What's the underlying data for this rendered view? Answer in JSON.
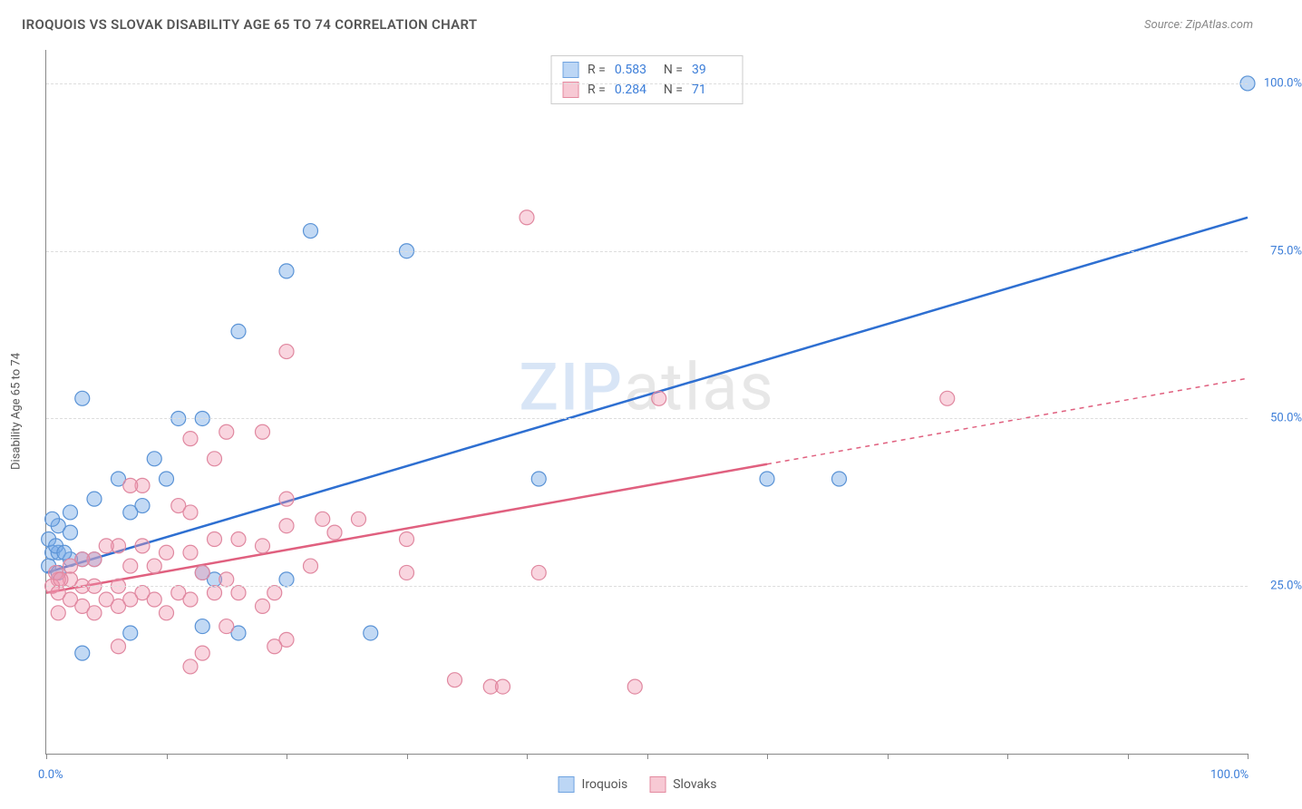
{
  "title": "IROQUOIS VS SLOVAK DISABILITY AGE 65 TO 74 CORRELATION CHART",
  "source_label": "Source:",
  "source_name": "ZipAtlas.com",
  "y_axis_title": "Disability Age 65 to 74",
  "watermark": {
    "z": "ZIP",
    "rest": "atlas"
  },
  "x_axis": {
    "min_label": "0.0%",
    "max_label": "100.0%",
    "min": 0,
    "max": 100,
    "tick_positions": [
      0,
      10,
      20,
      30,
      40,
      50,
      60,
      70,
      80,
      90,
      100
    ],
    "label_color": "#3b7dd8"
  },
  "y_axis": {
    "ticks": [
      {
        "v": 25,
        "label": "25.0%"
      },
      {
        "v": 50,
        "label": "50.0%"
      },
      {
        "v": 75,
        "label": "75.0%"
      },
      {
        "v": 100,
        "label": "100.0%"
      }
    ],
    "min": 0,
    "max": 105,
    "label_color": "#3b7dd8"
  },
  "series": [
    {
      "name": "Iroquois",
      "swatch_fill": "#bcd6f5",
      "swatch_stroke": "#6fa3e0",
      "point_fill": "rgba(120,170,230,0.45)",
      "point_stroke": "#5a93d6",
      "point_radius": 8,
      "trend": {
        "color": "#2e6fd1",
        "width": 2.5,
        "x1": 0,
        "y1": 27,
        "x2": 100,
        "y2": 80,
        "dash_from_x": null
      },
      "stats": {
        "R": "0.583",
        "N": "39"
      },
      "points": [
        [
          100,
          100
        ],
        [
          66,
          41
        ],
        [
          60,
          41
        ],
        [
          41,
          41
        ],
        [
          30,
          75
        ],
        [
          22,
          78
        ],
        [
          20,
          72
        ],
        [
          16,
          63
        ],
        [
          13,
          50
        ],
        [
          11,
          50
        ],
        [
          3,
          53
        ],
        [
          9,
          44
        ],
        [
          6,
          41
        ],
        [
          10,
          41
        ],
        [
          4,
          38
        ],
        [
          8,
          37
        ],
        [
          7,
          36
        ],
        [
          2,
          36
        ],
        [
          1,
          34
        ],
        [
          2,
          33
        ],
        [
          0.5,
          30
        ],
        [
          1,
          30
        ],
        [
          3,
          29
        ],
        [
          4,
          29
        ],
        [
          2,
          29
        ],
        [
          0.2,
          28
        ],
        [
          1,
          27
        ],
        [
          13,
          27
        ],
        [
          14,
          26
        ],
        [
          20,
          26
        ],
        [
          13,
          19
        ],
        [
          7,
          18
        ],
        [
          16,
          18
        ],
        [
          27,
          18
        ],
        [
          3,
          15
        ],
        [
          0.5,
          35
        ],
        [
          0.2,
          32
        ],
        [
          0.8,
          31
        ],
        [
          1.5,
          30
        ]
      ]
    },
    {
      "name": "Slovaks",
      "swatch_fill": "#f7c9d4",
      "swatch_stroke": "#e48aa0",
      "point_fill": "rgba(240,150,175,0.40)",
      "point_stroke": "#e088a0",
      "point_radius": 8,
      "trend": {
        "color": "#e0607f",
        "width": 2.5,
        "x1": 0,
        "y1": 24,
        "x2": 100,
        "y2": 56,
        "dash_from_x": 60
      },
      "stats": {
        "R": "0.284",
        "N": "71"
      },
      "points": [
        [
          40,
          80
        ],
        [
          75,
          53
        ],
        [
          51,
          53
        ],
        [
          20,
          60
        ],
        [
          15,
          48
        ],
        [
          18,
          48
        ],
        [
          12,
          47
        ],
        [
          14,
          44
        ],
        [
          8,
          40
        ],
        [
          7,
          40
        ],
        [
          20,
          38
        ],
        [
          11,
          37
        ],
        [
          12,
          36
        ],
        [
          23,
          35
        ],
        [
          26,
          35
        ],
        [
          20,
          34
        ],
        [
          24,
          33
        ],
        [
          30,
          32
        ],
        [
          16,
          32
        ],
        [
          14,
          32
        ],
        [
          18,
          31
        ],
        [
          8,
          31
        ],
        [
          6,
          31
        ],
        [
          5,
          31
        ],
        [
          10,
          30
        ],
        [
          12,
          30
        ],
        [
          4,
          29
        ],
        [
          3,
          29
        ],
        [
          7,
          28
        ],
        [
          9,
          28
        ],
        [
          22,
          28
        ],
        [
          41,
          27
        ],
        [
          30,
          27
        ],
        [
          13,
          27
        ],
        [
          15,
          26
        ],
        [
          2,
          26
        ],
        [
          1,
          26
        ],
        [
          6,
          25
        ],
        [
          3,
          25
        ],
        [
          4,
          25
        ],
        [
          0.5,
          25
        ],
        [
          8,
          24
        ],
        [
          11,
          24
        ],
        [
          14,
          24
        ],
        [
          16,
          24
        ],
        [
          19,
          24
        ],
        [
          1,
          24
        ],
        [
          2,
          23
        ],
        [
          5,
          23
        ],
        [
          7,
          23
        ],
        [
          9,
          23
        ],
        [
          12,
          23
        ],
        [
          3,
          22
        ],
        [
          6,
          22
        ],
        [
          18,
          22
        ],
        [
          10,
          21
        ],
        [
          4,
          21
        ],
        [
          1,
          21
        ],
        [
          15,
          19
        ],
        [
          20,
          17
        ],
        [
          19,
          16
        ],
        [
          6,
          16
        ],
        [
          13,
          15
        ],
        [
          12,
          13
        ],
        [
          34,
          11
        ],
        [
          37,
          10
        ],
        [
          38,
          10
        ],
        [
          49,
          10
        ],
        [
          2,
          28
        ],
        [
          0.8,
          27
        ],
        [
          1.2,
          26
        ]
      ]
    }
  ],
  "legend": {
    "items": [
      {
        "label": "Iroquois",
        "fill": "#bcd6f5",
        "stroke": "#6fa3e0"
      },
      {
        "label": "Slovaks",
        "fill": "#f7c9d4",
        "stroke": "#e48aa0"
      }
    ]
  },
  "colors": {
    "grid": "#dddddd",
    "axis": "#888888",
    "title": "#555555",
    "background": "#ffffff"
  }
}
